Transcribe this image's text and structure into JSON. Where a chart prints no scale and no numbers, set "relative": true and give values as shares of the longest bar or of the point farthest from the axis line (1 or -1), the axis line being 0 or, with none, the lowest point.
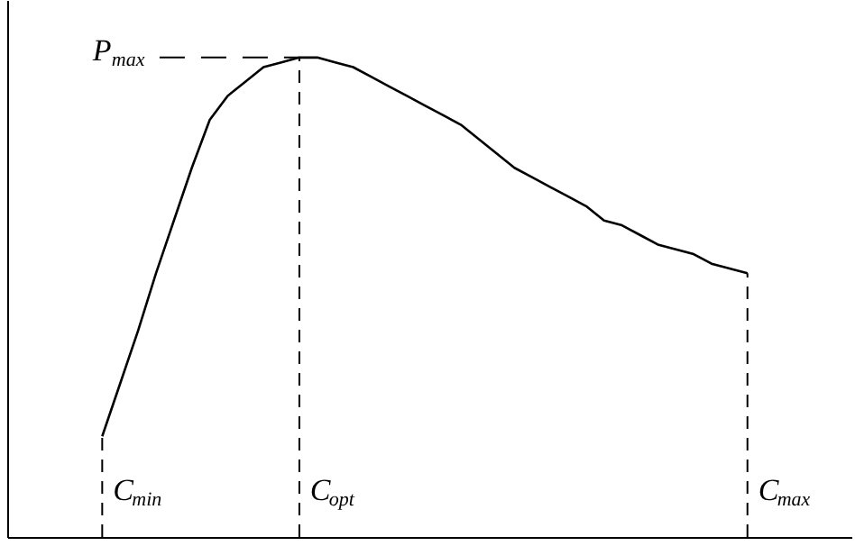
{
  "chart_data": {
    "type": "line",
    "relative": true,
    "categories": [
      null,
      null,
      null,
      null,
      null,
      null,
      null,
      null,
      null,
      null,
      null,
      null,
      null,
      null,
      null,
      null,
      null,
      null,
      null,
      null,
      null,
      null,
      null,
      null,
      null,
      null,
      null,
      null,
      null,
      null,
      null,
      null,
      null,
      null,
      null,
      null,
      null
    ],
    "series": [
      {
        "color": "#000000",
        "values": [
          0.21,
          0.32,
          0.43,
          0.55,
          0.66,
          0.77,
          0.87,
          0.92,
          0.95,
          0.98,
          0.99,
          1.0,
          1.0,
          0.99,
          0.98,
          0.96,
          0.94,
          0.92,
          0.9,
          0.88,
          0.86,
          0.83,
          0.8,
          0.77,
          0.75,
          0.73,
          0.71,
          0.69,
          0.66,
          0.65,
          0.63,
          0.61,
          0.6,
          0.59,
          0.57,
          0.56,
          0.55
        ]
      }
    ],
    "annotations": [
      "C$_{min}$",
      "C$_{opt}$",
      "C$_{max}$"
    ],
    "ref_lines": [
      {
        "axis": "y",
        "value": 1,
        "label": "P$_{max}$",
        "line_style": "dashed"
      }
    ]
  }
}
